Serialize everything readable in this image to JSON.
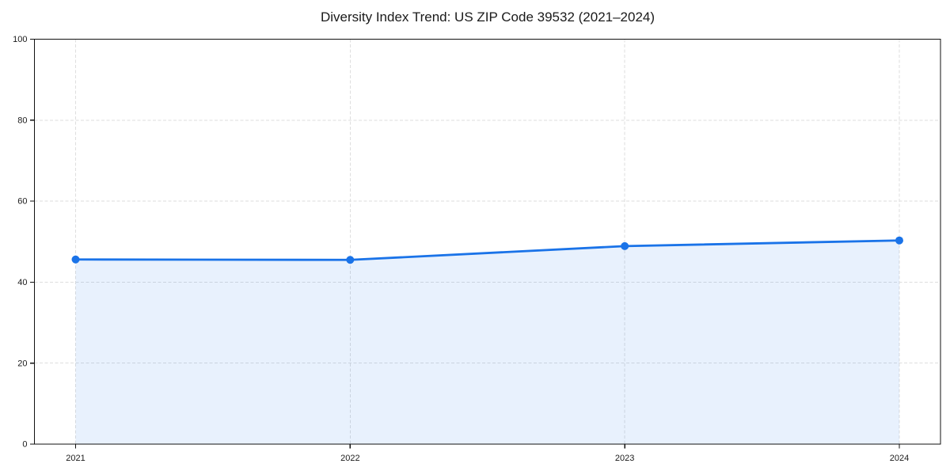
{
  "chart_data": {
    "type": "area",
    "title": "Diversity Index Trend: US ZIP Code 39532 (2021–2024)",
    "x": [
      2021,
      2022,
      2023,
      2024
    ],
    "xtick_labels": [
      "2021",
      "2022",
      "2023",
      "2024"
    ],
    "series": [
      {
        "name": "Diversity Index",
        "values": [
          45.6,
          45.5,
          48.9,
          50.3
        ]
      }
    ],
    "xlabel": "",
    "ylabel": "",
    "ylim": [
      0,
      100
    ],
    "yticks": [
      0,
      20,
      40,
      60,
      80,
      100
    ],
    "grid": true,
    "grid_style": "dashed",
    "legend_position": "none",
    "colors": {
      "line": "#1a73e8",
      "marker": "#1a73e8",
      "area_fill": "rgba(26,115,232,0.10)",
      "grid": "#dedede",
      "axis": "#111111",
      "tick_label": "#1a1a1a",
      "title": "#1a1a1a",
      "background": "#ffffff"
    }
  }
}
